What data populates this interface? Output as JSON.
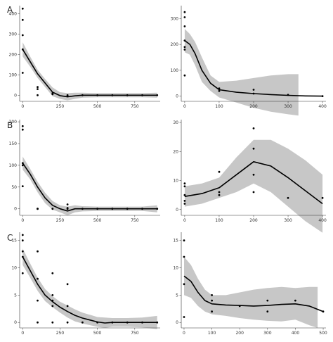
{
  "chart_data": [
    {
      "panel": "A",
      "position": "left",
      "type": "scatter",
      "xticks": [
        0,
        250,
        500,
        750
      ],
      "yticks": [
        0,
        100,
        200,
        300,
        400
      ],
      "xlim": [
        -20,
        920
      ],
      "ylim": [
        -30,
        440
      ],
      "points": [
        [
          0,
          425
        ],
        [
          0,
          370
        ],
        [
          0,
          295
        ],
        [
          0,
          225
        ],
        [
          0,
          110
        ],
        [
          100,
          40
        ],
        [
          100,
          30
        ],
        [
          100,
          0
        ],
        [
          200,
          10
        ],
        [
          200,
          5
        ],
        [
          300,
          -5
        ],
        [
          300,
          0
        ],
        [
          400,
          0
        ],
        [
          500,
          0
        ],
        [
          600,
          0
        ],
        [
          700,
          0
        ],
        [
          800,
          0
        ],
        [
          900,
          0
        ]
      ],
      "fit": [
        [
          0,
          225
        ],
        [
          50,
          165
        ],
        [
          100,
          105
        ],
        [
          150,
          60
        ],
        [
          200,
          15
        ],
        [
          250,
          -2
        ],
        [
          300,
          -8
        ],
        [
          350,
          -3
        ],
        [
          400,
          0
        ],
        [
          500,
          0
        ],
        [
          600,
          0
        ],
        [
          700,
          0
        ],
        [
          800,
          0
        ],
        [
          900,
          0
        ]
      ],
      "band_upper": [
        [
          0,
          260
        ],
        [
          50,
          190
        ],
        [
          100,
          125
        ],
        [
          150,
          80
        ],
        [
          200,
          38
        ],
        [
          250,
          15
        ],
        [
          300,
          10
        ],
        [
          350,
          12
        ],
        [
          400,
          12
        ],
        [
          500,
          10
        ],
        [
          600,
          10
        ],
        [
          700,
          10
        ],
        [
          800,
          10
        ],
        [
          900,
          12
        ]
      ],
      "band_lower": [
        [
          0,
          190
        ],
        [
          50,
          140
        ],
        [
          100,
          85
        ],
        [
          150,
          40
        ],
        [
          200,
          -5
        ],
        [
          250,
          -18
        ],
        [
          300,
          -25
        ],
        [
          350,
          -18
        ],
        [
          400,
          -12
        ],
        [
          500,
          -10
        ],
        [
          600,
          -10
        ],
        [
          700,
          -10
        ],
        [
          800,
          -10
        ],
        [
          900,
          -12
        ]
      ]
    },
    {
      "panel": "",
      "position": "right",
      "type": "scatter",
      "xticks": [
        0,
        100,
        200,
        300,
        400
      ],
      "yticks": [
        0,
        100,
        200,
        300
      ],
      "xlim": [
        -10,
        410
      ],
      "ylim": [
        -20,
        350
      ],
      "points": [
        [
          0,
          325
        ],
        [
          0,
          305
        ],
        [
          0,
          270
        ],
        [
          0,
          215
        ],
        [
          0,
          190
        ],
        [
          0,
          180
        ],
        [
          0,
          80
        ],
        [
          100,
          30
        ],
        [
          100,
          20
        ],
        [
          200,
          25
        ],
        [
          200,
          10
        ],
        [
          300,
          5
        ],
        [
          400,
          0
        ]
      ],
      "fit": [
        [
          0,
          215
        ],
        [
          15,
          200
        ],
        [
          30,
          165
        ],
        [
          50,
          100
        ],
        [
          75,
          50
        ],
        [
          100,
          25
        ],
        [
          150,
          15
        ],
        [
          200,
          10
        ],
        [
          250,
          6
        ],
        [
          300,
          3
        ],
        [
          350,
          1
        ],
        [
          400,
          0
        ]
      ],
      "band_upper": [
        [
          0,
          260
        ],
        [
          15,
          240
        ],
        [
          30,
          210
        ],
        [
          50,
          150
        ],
        [
          75,
          80
        ],
        [
          100,
          55
        ],
        [
          150,
          60
        ],
        [
          200,
          70
        ],
        [
          250,
          80
        ],
        [
          300,
          85
        ],
        [
          330,
          85
        ]
      ],
      "band_lower": [
        [
          0,
          170
        ],
        [
          15,
          160
        ],
        [
          30,
          120
        ],
        [
          50,
          55
        ],
        [
          75,
          20
        ],
        [
          100,
          -5
        ],
        [
          150,
          -25
        ],
        [
          200,
          -45
        ],
        [
          250,
          -60
        ],
        [
          300,
          -70
        ],
        [
          330,
          -75
        ]
      ]
    },
    {
      "panel": "B",
      "position": "left",
      "type": "scatter",
      "xticks": [
        0,
        250,
        500,
        750
      ],
      "yticks": [
        0,
        50,
        100,
        150,
        200
      ],
      "xlim": [
        -20,
        920
      ],
      "ylim": [
        -15,
        205
      ],
      "points": [
        [
          0,
          190
        ],
        [
          0,
          182
        ],
        [
          0,
          105
        ],
        [
          0,
          100
        ],
        [
          0,
          52
        ],
        [
          100,
          0
        ],
        [
          100,
          0
        ],
        [
          200,
          0
        ],
        [
          300,
          10
        ],
        [
          300,
          2
        ],
        [
          300,
          0
        ],
        [
          400,
          0
        ],
        [
          500,
          0
        ],
        [
          600,
          0
        ],
        [
          700,
          0
        ],
        [
          800,
          0
        ],
        [
          900,
          0
        ]
      ],
      "fit": [
        [
          0,
          105
        ],
        [
          50,
          80
        ],
        [
          100,
          50
        ],
        [
          150,
          25
        ],
        [
          200,
          8
        ],
        [
          250,
          0
        ],
        [
          300,
          -5
        ],
        [
          350,
          0
        ],
        [
          400,
          0
        ],
        [
          500,
          0
        ],
        [
          600,
          0
        ],
        [
          700,
          0
        ],
        [
          800,
          0
        ],
        [
          900,
          0
        ]
      ],
      "band_upper": [
        [
          0,
          120
        ],
        [
          50,
          92
        ],
        [
          100,
          62
        ],
        [
          150,
          37
        ],
        [
          200,
          18
        ],
        [
          250,
          8
        ],
        [
          300,
          5
        ],
        [
          350,
          8
        ],
        [
          400,
          6
        ],
        [
          500,
          5
        ],
        [
          600,
          5
        ],
        [
          700,
          5
        ],
        [
          800,
          5
        ],
        [
          900,
          8
        ]
      ],
      "band_lower": [
        [
          0,
          90
        ],
        [
          50,
          68
        ],
        [
          100,
          38
        ],
        [
          150,
          13
        ],
        [
          200,
          -2
        ],
        [
          250,
          -8
        ],
        [
          300,
          -15
        ],
        [
          350,
          -8
        ],
        [
          400,
          -6
        ],
        [
          500,
          -5
        ],
        [
          600,
          -5
        ],
        [
          700,
          -5
        ],
        [
          800,
          -5
        ],
        [
          900,
          -8
        ]
      ]
    },
    {
      "panel": "",
      "position": "right",
      "type": "scatter",
      "xticks": [
        0,
        100,
        200,
        300,
        400
      ],
      "yticks": [
        0,
        10,
        20,
        30
      ],
      "xlim": [
        -10,
        410
      ],
      "ylim": [
        -2,
        31
      ],
      "points": [
        [
          0,
          9
        ],
        [
          0,
          8
        ],
        [
          0,
          5
        ],
        [
          0,
          3
        ],
        [
          0,
          2
        ],
        [
          100,
          13
        ],
        [
          100,
          6
        ],
        [
          100,
          5
        ],
        [
          200,
          28
        ],
        [
          200,
          21
        ],
        [
          200,
          12
        ],
        [
          200,
          6
        ],
        [
          300,
          4
        ],
        [
          400,
          4
        ]
      ],
      "fit": [
        [
          0,
          4.5
        ],
        [
          50,
          5.5
        ],
        [
          100,
          7.5
        ],
        [
          150,
          12
        ],
        [
          200,
          16.5
        ],
        [
          250,
          15
        ],
        [
          300,
          11
        ],
        [
          350,
          6.5
        ],
        [
          400,
          2
        ]
      ],
      "band_upper": [
        [
          0,
          8
        ],
        [
          50,
          9
        ],
        [
          100,
          11
        ],
        [
          150,
          18
        ],
        [
          200,
          24
        ],
        [
          250,
          24
        ],
        [
          300,
          21
        ],
        [
          350,
          17
        ],
        [
          400,
          12
        ]
      ],
      "band_lower": [
        [
          0,
          1
        ],
        [
          50,
          2
        ],
        [
          100,
          4
        ],
        [
          150,
          6
        ],
        [
          200,
          9
        ],
        [
          250,
          6
        ],
        [
          300,
          1
        ],
        [
          350,
          -4
        ],
        [
          400,
          -8
        ]
      ]
    },
    {
      "panel": "C",
      "position": "left",
      "type": "scatter",
      "xticks": [
        0,
        250,
        500,
        750
      ],
      "yticks": [
        0,
        5,
        10,
        15
      ],
      "xlim": [
        -20,
        920
      ],
      "ylim": [
        -1,
        16.5
      ],
      "points": [
        [
          0,
          16
        ],
        [
          0,
          15
        ],
        [
          0,
          13
        ],
        [
          0,
          12
        ],
        [
          0,
          9
        ],
        [
          100,
          13
        ],
        [
          100,
          8
        ],
        [
          100,
          4
        ],
        [
          100,
          0
        ],
        [
          200,
          9
        ],
        [
          200,
          5
        ],
        [
          200,
          4
        ],
        [
          200,
          3
        ],
        [
          200,
          0
        ],
        [
          300,
          7
        ],
        [
          300,
          3
        ],
        [
          300,
          0
        ],
        [
          400,
          0
        ],
        [
          500,
          0
        ],
        [
          600,
          0
        ],
        [
          700,
          0
        ],
        [
          800,
          0
        ],
        [
          900,
          0
        ]
      ],
      "fit": [
        [
          0,
          12
        ],
        [
          50,
          9.5
        ],
        [
          100,
          7
        ],
        [
          150,
          5
        ],
        [
          200,
          3.8
        ],
        [
          250,
          2.8
        ],
        [
          300,
          2
        ],
        [
          350,
          1.3
        ],
        [
          400,
          0.8
        ],
        [
          500,
          0.1
        ],
        [
          550,
          -0.1
        ],
        [
          600,
          0
        ],
        [
          700,
          0
        ],
        [
          800,
          0
        ],
        [
          900,
          0
        ]
      ],
      "band_upper": [
        [
          0,
          13.5
        ],
        [
          50,
          10.8
        ],
        [
          100,
          8.2
        ],
        [
          150,
          6.1
        ],
        [
          200,
          4.8
        ],
        [
          250,
          3.8
        ],
        [
          300,
          3.1
        ],
        [
          350,
          2.4
        ],
        [
          400,
          1.8
        ],
        [
          500,
          1
        ],
        [
          550,
          0.9
        ],
        [
          600,
          0.8
        ],
        [
          700,
          0.8
        ],
        [
          800,
          0.9
        ],
        [
          900,
          1.2
        ]
      ],
      "band_lower": [
        [
          0,
          10.5
        ],
        [
          50,
          8.2
        ],
        [
          100,
          5.8
        ],
        [
          150,
          3.9
        ],
        [
          200,
          2.8
        ],
        [
          250,
          1.8
        ],
        [
          300,
          0.9
        ],
        [
          350,
          0.2
        ],
        [
          400,
          -0.2
        ],
        [
          500,
          -0.8
        ],
        [
          550,
          -1
        ],
        [
          600,
          -0.8
        ],
        [
          700,
          -0.8
        ],
        [
          800,
          -0.9
        ],
        [
          900,
          -1.2
        ]
      ]
    },
    {
      "panel": "",
      "position": "right",
      "type": "scatter",
      "xticks": [
        0,
        100,
        200,
        300,
        400,
        500
      ],
      "yticks": [
        0,
        5,
        10,
        15
      ],
      "xlim": [
        -10,
        510
      ],
      "ylim": [
        -1,
        16.5
      ],
      "points": [
        [
          0,
          15
        ],
        [
          0,
          12
        ],
        [
          0,
          7
        ],
        [
          0,
          1
        ],
        [
          100,
          5
        ],
        [
          100,
          4
        ],
        [
          100,
          2
        ],
        [
          200,
          3
        ],
        [
          300,
          4
        ],
        [
          300,
          2
        ],
        [
          400,
          4
        ],
        [
          500,
          2
        ]
      ],
      "fit": [
        [
          0,
          8.5
        ],
        [
          25,
          7.5
        ],
        [
          50,
          5.5
        ],
        [
          75,
          4
        ],
        [
          100,
          3.4
        ],
        [
          150,
          3.2
        ],
        [
          200,
          3.1
        ],
        [
          250,
          3
        ],
        [
          300,
          3.1
        ],
        [
          350,
          3.3
        ],
        [
          400,
          3.4
        ],
        [
          450,
          3
        ],
        [
          500,
          2
        ]
      ],
      "band_upper": [
        [
          0,
          12
        ],
        [
          25,
          10.5
        ],
        [
          50,
          8
        ],
        [
          75,
          6
        ],
        [
          100,
          5
        ],
        [
          150,
          5
        ],
        [
          200,
          5.5
        ],
        [
          250,
          6
        ],
        [
          300,
          6.3
        ],
        [
          350,
          6.5
        ],
        [
          400,
          6.3
        ],
        [
          450,
          6.5
        ],
        [
          480,
          6.5
        ]
      ],
      "band_lower": [
        [
          0,
          5
        ],
        [
          25,
          4.5
        ],
        [
          50,
          3
        ],
        [
          75,
          2
        ],
        [
          100,
          1.5
        ],
        [
          150,
          1.2
        ],
        [
          200,
          0.8
        ],
        [
          250,
          0.5
        ],
        [
          300,
          0.3
        ],
        [
          350,
          0.2
        ],
        [
          400,
          0.5
        ],
        [
          450,
          -0.5
        ],
        [
          480,
          -1
        ]
      ]
    }
  ]
}
